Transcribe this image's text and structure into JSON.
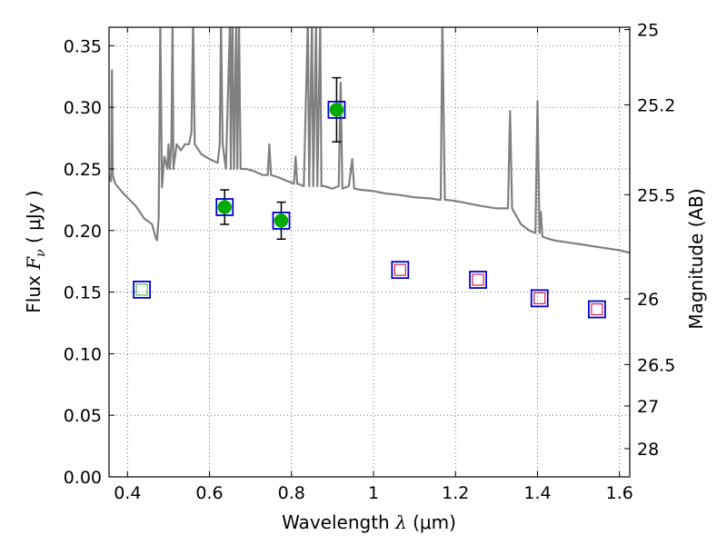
{
  "chart_data": {
    "type": "scatter",
    "title": "",
    "xlabel": "Wavelength  λ (μm)",
    "ylabel": "Flux  F_ν  ( μJy )",
    "ylabel_parts": {
      "pre": "Flux  ",
      "var": "F",
      "sub": "ν",
      "post": "  ( μJy )"
    },
    "xlabel_parts": {
      "pre": "Wavelength  ",
      "var": "λ",
      "post": " (μm)"
    },
    "y2label": "Magnitude (AB)",
    "xlim": [
      0.355,
      1.625
    ],
    "ylim": [
      0.0,
      0.365
    ],
    "grid": true,
    "x_ticks": [
      0.4,
      0.6,
      0.8,
      1.0,
      1.2,
      1.4,
      1.6
    ],
    "x_tick_labels": [
      "0.4",
      "0.6",
      "0.8",
      "1",
      "1.2",
      "1.4",
      "1.6"
    ],
    "y_ticks": [
      0.0,
      0.05,
      0.1,
      0.15,
      0.2,
      0.25,
      0.3,
      0.35
    ],
    "y_tick_labels": [
      "0.00",
      "0.05",
      "0.10",
      "0.15",
      "0.20",
      "0.25",
      "0.30",
      "0.35"
    ],
    "y2_ticks": [
      {
        "mag": 25.0,
        "label": "25"
      },
      {
        "mag": 25.2,
        "label": "25.2"
      },
      {
        "mag": 25.5,
        "label": "25.5"
      },
      {
        "mag": 26.0,
        "label": "26"
      },
      {
        "mag": 26.5,
        "label": "26.5"
      },
      {
        "mag": 27.0,
        "label": "27"
      },
      {
        "mag": 28.0,
        "label": "28"
      }
    ],
    "colors": {
      "template": "#808080",
      "box": "#0000cc",
      "detected": "#00aa00",
      "errorbar": "#000000",
      "model": "#cc2255",
      "model_green": "#55bb55",
      "grid": "#555555"
    },
    "series": [
      {
        "type": "line",
        "points": [
          [
            0.355,
            0.245
          ],
          [
            0.36,
            0.24
          ],
          [
            0.362,
            0.33
          ],
          [
            0.364,
            0.245
          ],
          [
            0.37,
            0.238
          ],
          [
            0.39,
            0.23
          ],
          [
            0.42,
            0.22
          ],
          [
            0.44,
            0.21
          ],
          [
            0.46,
            0.205
          ],
          [
            0.468,
            0.195
          ],
          [
            0.472,
            0.192
          ],
          [
            0.476,
            0.21
          ],
          [
            0.48,
            0.37
          ],
          [
            0.484,
            0.235
          ],
          [
            0.49,
            0.26
          ],
          [
            0.497,
            0.25
          ],
          [
            0.5,
            0.27
          ],
          [
            0.503,
            0.25
          ],
          [
            0.507,
            0.27
          ],
          [
            0.51,
            0.37
          ],
          [
            0.512,
            0.25
          ],
          [
            0.52,
            0.27
          ],
          [
            0.53,
            0.265
          ],
          [
            0.54,
            0.27
          ],
          [
            0.55,
            0.27
          ],
          [
            0.556,
            0.28
          ],
          [
            0.56,
            0.37
          ],
          [
            0.564,
            0.27
          ],
          [
            0.58,
            0.262
          ],
          [
            0.6,
            0.258
          ],
          [
            0.62,
            0.255
          ],
          [
            0.625,
            0.27
          ],
          [
            0.628,
            0.37
          ],
          [
            0.632,
            0.27
          ],
          [
            0.64,
            0.25
          ],
          [
            0.65,
            0.37
          ],
          [
            0.652,
            0.25
          ],
          [
            0.656,
            0.37
          ],
          [
            0.66,
            0.25
          ],
          [
            0.665,
            0.37
          ],
          [
            0.668,
            0.25
          ],
          [
            0.672,
            0.37
          ],
          [
            0.676,
            0.25
          ],
          [
            0.69,
            0.25
          ],
          [
            0.71,
            0.248
          ],
          [
            0.73,
            0.245
          ],
          [
            0.742,
            0.245
          ],
          [
            0.746,
            0.27
          ],
          [
            0.75,
            0.245
          ],
          [
            0.77,
            0.243
          ],
          [
            0.79,
            0.24
          ],
          [
            0.806,
            0.238
          ],
          [
            0.81,
            0.26
          ],
          [
            0.814,
            0.238
          ],
          [
            0.83,
            0.236
          ],
          [
            0.84,
            0.37
          ],
          [
            0.843,
            0.236
          ],
          [
            0.85,
            0.37
          ],
          [
            0.853,
            0.236
          ],
          [
            0.86,
            0.37
          ],
          [
            0.863,
            0.236
          ],
          [
            0.87,
            0.37
          ],
          [
            0.873,
            0.236
          ],
          [
            0.88,
            0.236
          ],
          [
            0.9,
            0.234
          ],
          [
            0.915,
            0.236
          ],
          [
            0.92,
            0.32
          ],
          [
            0.924,
            0.234
          ],
          [
            0.94,
            0.236
          ],
          [
            0.948,
            0.258
          ],
          [
            0.953,
            0.234
          ],
          [
            0.97,
            0.233
          ],
          [
            1.0,
            0.232
          ],
          [
            1.03,
            0.23
          ],
          [
            1.06,
            0.229
          ],
          [
            1.08,
            0.228
          ],
          [
            1.1,
            0.227
          ],
          [
            1.14,
            0.226
          ],
          [
            1.16,
            0.225
          ],
          [
            1.164,
            0.225
          ],
          [
            1.168,
            0.37
          ],
          [
            1.174,
            0.225
          ],
          [
            1.2,
            0.224
          ],
          [
            1.23,
            0.222
          ],
          [
            1.26,
            0.22
          ],
          [
            1.3,
            0.218
          ],
          [
            1.32,
            0.218
          ],
          [
            1.328,
            0.218
          ],
          [
            1.333,
            0.297
          ],
          [
            1.338,
            0.218
          ],
          [
            1.36,
            0.205
          ],
          [
            1.38,
            0.2
          ],
          [
            1.395,
            0.198
          ],
          [
            1.4,
            0.305
          ],
          [
            1.405,
            0.198
          ],
          [
            1.408,
            0.215
          ],
          [
            1.412,
            0.195
          ],
          [
            1.42,
            0.194
          ],
          [
            1.44,
            0.192
          ],
          [
            1.48,
            0.19
          ],
          [
            1.52,
            0.188
          ],
          [
            1.56,
            0.186
          ],
          [
            1.6,
            0.184
          ],
          [
            1.625,
            0.182
          ]
        ]
      },
      {
        "type": "detected",
        "points": [
          {
            "x": 0.637,
            "y": 0.219,
            "err": 0.014
          },
          {
            "x": 0.775,
            "y": 0.208,
            "err": 0.015
          },
          {
            "x": 0.91,
            "y": 0.298,
            "err": 0.026
          }
        ]
      },
      {
        "type": "filter-box",
        "points": [
          {
            "x": 0.435,
            "y": 0.152
          },
          {
            "x": 0.637,
            "y": 0.219
          },
          {
            "x": 0.775,
            "y": 0.208
          },
          {
            "x": 0.91,
            "y": 0.298
          },
          {
            "x": 1.065,
            "y": 0.168
          },
          {
            "x": 1.255,
            "y": 0.16
          },
          {
            "x": 1.405,
            "y": 0.145
          },
          {
            "x": 1.545,
            "y": 0.136
          }
        ]
      },
      {
        "type": "model-box",
        "points": [
          {
            "x": 0.435,
            "y": 0.152,
            "color": "green"
          },
          {
            "x": 1.065,
            "y": 0.168,
            "color": "red"
          },
          {
            "x": 1.255,
            "y": 0.16,
            "color": "red"
          },
          {
            "x": 1.405,
            "y": 0.145,
            "color": "red"
          },
          {
            "x": 1.545,
            "y": 0.136,
            "color": "red"
          }
        ]
      }
    ]
  }
}
